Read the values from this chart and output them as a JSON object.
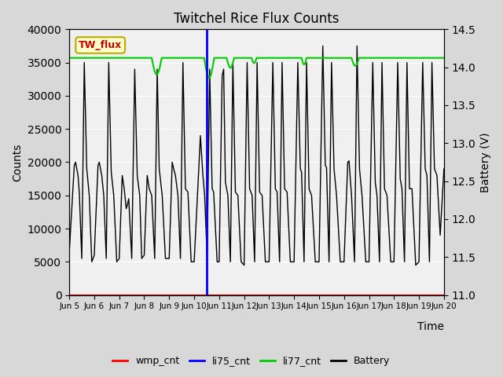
{
  "title": "Twitchel Rice Flux Counts",
  "xlabel": "Time",
  "ylabel_left": "Counts",
  "ylabel_right": "Battery (V)",
  "xlim": [
    0,
    15
  ],
  "ylim_left": [
    0,
    40000
  ],
  "ylim_right": [
    11.0,
    14.5
  ],
  "xtick_labels": [
    "Jun 5",
    "Jun 6",
    "Jun 7",
    "Jun 8",
    "Jun 9",
    "Jun 10",
    "Jun 11",
    "Jun 12",
    "Jun 13",
    "Jun 14",
    "Jun 15",
    "Jun 16",
    "Jun 17",
    "Jun 18",
    "Jun 19",
    "Jun 20"
  ],
  "ytick_left": [
    0,
    5000,
    10000,
    15000,
    20000,
    25000,
    30000,
    35000,
    40000
  ],
  "ytick_right": [
    11.0,
    11.5,
    12.0,
    12.5,
    13.0,
    13.5,
    14.0,
    14.5
  ],
  "bg_color": "#d8d8d8",
  "plot_bg_color": "#e8e8e8",
  "inner_bg_color": "#f0f0f0",
  "wmp_color": "#ff0000",
  "li75_color": "#0000ff",
  "li77_color": "#00cc00",
  "battery_color": "#000000",
  "annotation_box_facecolor": "#ffffcc",
  "annotation_text_color": "#cc0000",
  "annotation_border_color": "#bbaa00",
  "annotation_text": "TW_flux",
  "li77_value": 35700,
  "li75_x": 5.5
}
